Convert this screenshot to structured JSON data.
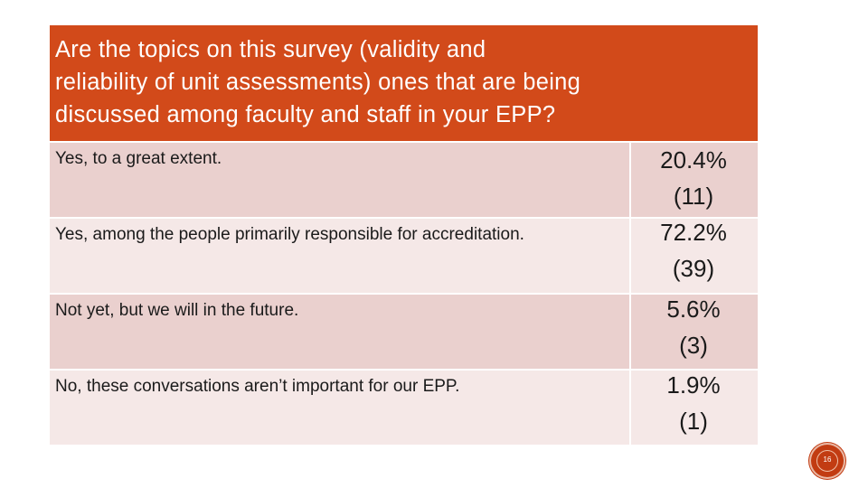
{
  "slide": {
    "question": "Are the topics on this survey (validity and reliability of unit assessments) ones that are being discussed among faculty and staff in your EPP?",
    "question_lines": [
      "Are the topics on this survey (validity and",
      "reliability of unit assessments) ones that are being",
      "discussed among faculty and staff in your EPP?"
    ],
    "options": [
      {
        "label": "Yes, to a great extent.",
        "percent": "20.4%",
        "count": "(11)"
      },
      {
        "label": "Yes, among the people primarily responsible for accreditation.",
        "percent": "72.2%",
        "count": "(39)"
      },
      {
        "label": "Not yet, but we will in the future.",
        "percent": "5.6%",
        "count": "(3)"
      },
      {
        "label": "No, these conversations aren’t important for our EPP.",
        "percent": "1.9%",
        "count": "(1)"
      }
    ],
    "page_number": "16"
  },
  "colors": {
    "header_bg": "#d24a1a",
    "row_dark": "#ead0ce",
    "row_light": "#f5e8e7",
    "badge": "#c23c12"
  }
}
